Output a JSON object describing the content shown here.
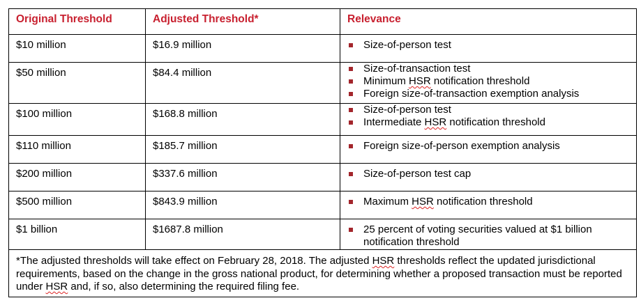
{
  "headers": [
    "Original Threshold",
    "Adjusted Threshold*",
    "Relevance"
  ],
  "rows": [
    {
      "original": "$10 million",
      "adjusted": "$16.9 million",
      "relevance": [
        "Size-of-person test"
      ],
      "h": 40
    },
    {
      "original": "$50 million",
      "adjusted": "$84.4 million",
      "relevance": [
        "Size-of-transaction test",
        "Minimum HSR notification threshold",
        "Foreign size-of-transaction exemption analysis"
      ],
      "h": 59
    },
    {
      "original": "$100 million",
      "adjusted": "$168.8 million",
      "relevance": [
        "Size-of-person test",
        "Intermediate HSR notification threshold"
      ],
      "h": 46
    },
    {
      "original": "$110 million",
      "adjusted": "$185.7 million",
      "relevance": [
        "Foreign size-of-person exemption analysis"
      ],
      "h": 40
    },
    {
      "original": "$200 million",
      "adjusted": "$337.6 million",
      "relevance": [
        "Size-of-person test cap"
      ],
      "h": 40
    },
    {
      "original": "$500 million",
      "adjusted": "$843.9 million",
      "relevance": [
        "Maximum HSR notification threshold"
      ],
      "h": 40
    },
    {
      "original": "$1 billion",
      "adjusted": "$1687.8 million",
      "relevance": [
        "25 percent of voting securities valued at $1 billion notification threshold"
      ],
      "h": 44
    }
  ],
  "footnote": "*The adjusted thresholds will take effect on February 28, 2018. The adjusted HSR thresholds reflect the updated jurisdictional requirements, based on the change in the gross national product, for determining whether a proposed transaction must be reported under HSR and, if so, also determining the required filing fee.",
  "colors": {
    "header_text": "#c8202f",
    "bullet": "#a3262c"
  }
}
